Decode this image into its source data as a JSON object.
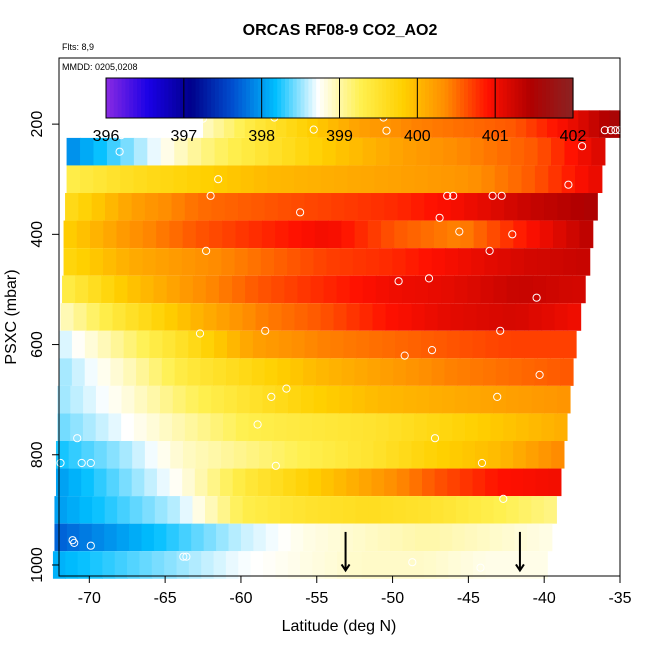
{
  "chart_data": {
    "type": "heatmap",
    "title": "ORCAS RF08-9 CO2_AO2",
    "subtitle_flights": "Flts: 8,9",
    "subtitle_dates": "MMDD: 0205,0208",
    "xlabel": "Latitude (deg N)",
    "ylabel": "PSXC (mbar)",
    "xlim": [
      -72,
      -35
    ],
    "ylim": [
      1020,
      80
    ],
    "x_ticks": [
      -70,
      -65,
      -60,
      -55,
      -50,
      -45,
      -40,
      -35
    ],
    "y_ticks": [
      200,
      400,
      600,
      800,
      1000
    ],
    "colorbar": {
      "range": [
        396,
        402
      ],
      "ticks": [
        396,
        397,
        398,
        399,
        400,
        401,
        402
      ],
      "colors": [
        "#8a2be2",
        "#1a00e6",
        "#00008b",
        "#0050d0",
        "#00bfff",
        "#ffffff",
        "#fff050",
        "#ffd000",
        "#ff8c00",
        "#ff1000",
        "#b00000",
        "#8b2323"
      ]
    },
    "band_pressures": [
      200,
      250,
      300,
      350,
      400,
      450,
      500,
      550,
      600,
      650,
      700,
      750,
      800,
      850,
      900,
      950,
      1000
    ],
    "band_extents": [
      [
        -62.5,
        -35.0
      ],
      [
        -71.5,
        -36.0
      ],
      [
        -71.5,
        -36.2
      ],
      [
        -71.6,
        -36.5
      ],
      [
        -71.7,
        -36.8
      ],
      [
        -71.7,
        -37.0
      ],
      [
        -71.8,
        -37.3
      ],
      [
        -71.9,
        -37.6
      ],
      [
        -72.0,
        -37.9
      ],
      [
        -72.0,
        -38.1
      ],
      [
        -72.1,
        -38.3
      ],
      [
        -72.1,
        -38.5
      ],
      [
        -72.2,
        -38.7
      ],
      [
        -72.2,
        -38.9
      ],
      [
        -72.3,
        -39.2
      ],
      [
        -72.3,
        -39.5
      ],
      [
        -72.4,
        -39.8
      ]
    ],
    "band_values": [
      [
        398.9,
        399.4,
        399.8,
        400.2,
        400.4,
        400.5,
        400.6,
        401.0,
        401.6
      ],
      [
        397.9,
        398.5,
        399.1,
        399.5,
        399.9,
        400.2,
        400.4,
        400.6,
        401.2
      ],
      [
        399.3,
        399.6,
        399.8,
        400.0,
        400.1,
        400.2,
        400.3,
        400.6,
        401.1
      ],
      [
        399.6,
        400.2,
        400.5,
        400.6,
        400.7,
        400.8,
        401.0,
        401.3,
        401.5
      ],
      [
        399.8,
        400.3,
        400.6,
        400.8,
        401.0,
        400.6,
        400.4,
        400.9,
        401.4
      ],
      [
        399.7,
        400.1,
        400.3,
        400.5,
        400.7,
        400.8,
        401.0,
        401.2,
        401.3
      ],
      [
        399.3,
        399.9,
        400.3,
        400.6,
        400.8,
        401.0,
        401.1,
        401.3,
        401.2
      ],
      [
        398.9,
        399.5,
        400.0,
        400.4,
        400.6,
        400.9,
        401.1,
        401.2,
        401.0
      ],
      [
        398.6,
        399.1,
        399.6,
        400.2,
        400.4,
        400.5,
        400.6,
        400.7,
        400.7
      ],
      [
        398.5,
        398.9,
        399.4,
        399.7,
        400.0,
        400.2,
        400.4,
        400.5,
        400.6
      ],
      [
        398.5,
        398.8,
        399.2,
        399.5,
        399.8,
        400.0,
        400.1,
        400.2,
        400.3
      ],
      [
        398.4,
        398.7,
        399.0,
        399.3,
        399.4,
        399.5,
        399.7,
        399.9,
        400.1
      ],
      [
        398.2,
        398.5,
        398.9,
        399.1,
        399.3,
        399.5,
        399.8,
        400.0,
        400.4
      ],
      [
        398.0,
        398.4,
        398.8,
        399.4,
        399.8,
        400.2,
        400.6,
        400.9,
        401.0
      ],
      [
        398.0,
        398.3,
        398.6,
        399.3,
        399.5,
        399.6,
        399.5,
        399.3,
        399.1
      ],
      [
        397.7,
        398.0,
        398.3,
        398.6,
        398.8,
        398.9,
        399.0,
        398.9,
        398.8
      ],
      [
        398.1,
        398.3,
        398.5,
        398.7,
        398.8,
        398.9,
        398.9,
        398.8,
        398.8
      ]
    ],
    "sample_points": [
      [
        -62.5,
        190
      ],
      [
        -57.8,
        188
      ],
      [
        -55.2,
        210
      ],
      [
        -50.6,
        188
      ],
      [
        -50.4,
        212
      ],
      [
        -37.5,
        240
      ],
      [
        -67.9,
        220
      ],
      [
        -68.0,
        250
      ],
      [
        -61.5,
        300
      ],
      [
        -62.0,
        330
      ],
      [
        -38.4,
        310
      ],
      [
        -43.4,
        330
      ],
      [
        -46.4,
        330
      ],
      [
        -46.0,
        330
      ],
      [
        -42.8,
        330
      ],
      [
        -56.1,
        360
      ],
      [
        -46.9,
        370
      ],
      [
        -45.6,
        395
      ],
      [
        -42.1,
        400
      ],
      [
        -43.6,
        430
      ],
      [
        -62.3,
        430
      ],
      [
        -49.6,
        485
      ],
      [
        -47.6,
        480
      ],
      [
        -40.5,
        515
      ],
      [
        -62.7,
        580
      ],
      [
        -58.4,
        575
      ],
      [
        -42.9,
        575
      ],
      [
        -49.2,
        620
      ],
      [
        -47.4,
        610
      ],
      [
        -40.3,
        655
      ],
      [
        -57.0,
        680
      ],
      [
        -58.0,
        695
      ],
      [
        -43.1,
        695
      ],
      [
        -58.9,
        745
      ],
      [
        -70.8,
        770
      ],
      [
        -47.2,
        770
      ],
      [
        -70.5,
        815
      ],
      [
        -71.9,
        815
      ],
      [
        -69.9,
        815
      ],
      [
        -57.7,
        820
      ],
      [
        -44.1,
        815
      ],
      [
        -42.7,
        880
      ],
      [
        -71.1,
        955
      ],
      [
        -71.0,
        960
      ],
      [
        -69.9,
        965
      ],
      [
        -63.6,
        985
      ],
      [
        -63.8,
        985
      ],
      [
        -48.7,
        995
      ],
      [
        -44.2,
        1005
      ]
    ],
    "markers": [
      {
        "latitude": -53.1,
        "pressure": 1010
      },
      {
        "latitude": -41.6,
        "pressure": 1010
      }
    ]
  }
}
